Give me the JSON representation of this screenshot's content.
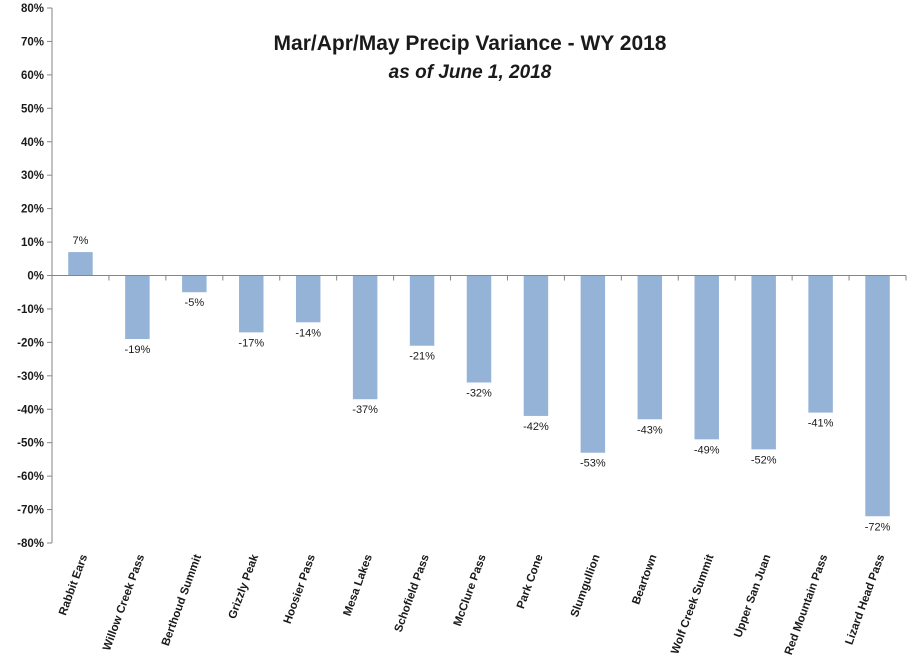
{
  "chart_data": {
    "type": "bar",
    "title": "Mar/Apr/May Precip Variance - WY 2018",
    "subtitle": "as of June 1, 2018",
    "xlabel": "",
    "ylabel": "",
    "categories": [
      "Rabbit Ears",
      "Willow Creek Pass",
      "Berthoud Summit",
      "Grizzly Peak",
      "Hoosier Pass",
      "Mesa Lakes",
      "Schofield Pass",
      "McClure Pass",
      "Park Cone",
      "Slumgullion",
      "Beartown",
      "Wolf Creek Summit",
      "Upper San Juan",
      "Red Mountain Pass",
      "Lizard Head Pass"
    ],
    "values": [
      7,
      -19,
      -5,
      -17,
      -14,
      -37,
      -21,
      -32,
      -42,
      -53,
      -43,
      -49,
      -52,
      -41,
      -72
    ],
    "data_labels": [
      "7%",
      "-19%",
      "-5%",
      "-17%",
      "-14%",
      "-37%",
      "-21%",
      "-32%",
      "-42%",
      "-53%",
      "-43%",
      "-49%",
      "-52%",
      "-41%",
      "-72%"
    ],
    "ylim": [
      -80,
      80
    ],
    "ytick_step": 10,
    "ytick_labels": [
      "80%",
      "70%",
      "60%",
      "50%",
      "40%",
      "30%",
      "20%",
      "10%",
      "0%",
      "-10%",
      "-20%",
      "-30%",
      "-40%",
      "-50%",
      "-60%",
      "-70%",
      "-80%"
    ],
    "grid": false,
    "legend": "none",
    "bar_color": "#95b3d7",
    "axis_color": "#868686"
  }
}
